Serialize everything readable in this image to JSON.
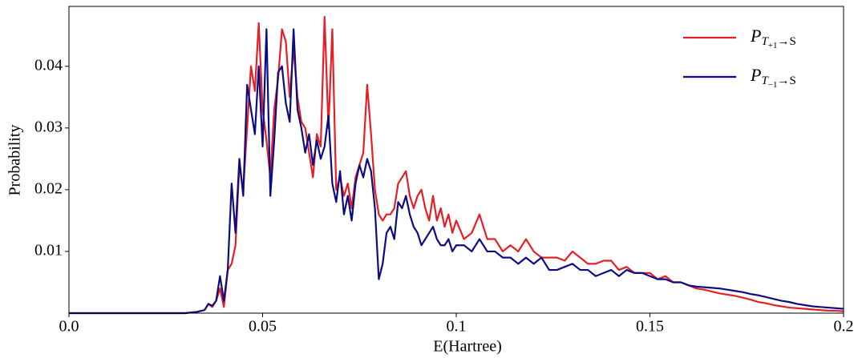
{
  "chart_data": {
    "type": "line",
    "xlabel": "E(Hartree)",
    "ylabel": "Probability",
    "x": [
      0,
      0.01,
      0.02,
      0.03,
      0.033,
      0.035,
      0.036,
      0.037,
      0.038,
      0.039,
      0.04,
      0.041,
      0.042,
      0.043,
      0.044,
      0.045,
      0.046,
      0.047,
      0.048,
      0.049,
      0.05,
      0.051,
      0.052,
      0.053,
      0.054,
      0.055,
      0.056,
      0.057,
      0.058,
      0.059,
      0.06,
      0.061,
      0.062,
      0.063,
      0.064,
      0.065,
      0.066,
      0.067,
      0.068,
      0.069,
      0.07,
      0.071,
      0.072,
      0.073,
      0.074,
      0.075,
      0.076,
      0.077,
      0.078,
      0.079,
      0.08,
      0.081,
      0.082,
      0.083,
      0.084,
      0.085,
      0.086,
      0.087,
      0.088,
      0.089,
      0.09,
      0.091,
      0.092,
      0.093,
      0.094,
      0.095,
      0.096,
      0.097,
      0.098,
      0.099,
      0.1,
      0.102,
      0.104,
      0.106,
      0.108,
      0.11,
      0.112,
      0.114,
      0.116,
      0.118,
      0.12,
      0.122,
      0.124,
      0.126,
      0.128,
      0.13,
      0.132,
      0.134,
      0.136,
      0.138,
      0.14,
      0.142,
      0.144,
      0.146,
      0.148,
      0.15,
      0.152,
      0.154,
      0.156,
      0.158,
      0.16,
      0.162,
      0.164,
      0.166,
      0.168,
      0.17,
      0.172,
      0.174,
      0.176,
      0.178,
      0.18,
      0.182,
      0.184,
      0.186,
      0.188,
      0.19,
      0.192,
      0.194,
      0.196,
      0.198,
      0.2
    ],
    "series": [
      {
        "name": "P_{T_{+1}→S}",
        "color": "#e41f26",
        "values": [
          0,
          0,
          0,
          0,
          0.0002,
          0.0005,
          0.0015,
          0.001,
          0.002,
          0.004,
          0.001,
          0.007,
          0.008,
          0.011,
          0.024,
          0.02,
          0.03,
          0.04,
          0.036,
          0.047,
          0.033,
          0.028,
          0.022,
          0.033,
          0.038,
          0.046,
          0.044,
          0.035,
          0.043,
          0.035,
          0.031,
          0.03,
          0.026,
          0.022,
          0.029,
          0.027,
          0.048,
          0.03,
          0.046,
          0.02,
          0.022,
          0.019,
          0.021,
          0.017,
          0.022,
          0.024,
          0.026,
          0.037,
          0.029,
          0.02,
          0.016,
          0.015,
          0.016,
          0.016,
          0.017,
          0.021,
          0.022,
          0.023,
          0.019,
          0.017,
          0.019,
          0.02,
          0.017,
          0.015,
          0.019,
          0.015,
          0.017,
          0.014,
          0.016,
          0.013,
          0.015,
          0.012,
          0.013,
          0.016,
          0.012,
          0.012,
          0.01,
          0.011,
          0.01,
          0.012,
          0.01,
          0.009,
          0.009,
          0.009,
          0.0085,
          0.01,
          0.009,
          0.008,
          0.008,
          0.0085,
          0.0085,
          0.007,
          0.0075,
          0.0065,
          0.0065,
          0.0065,
          0.0055,
          0.006,
          0.005,
          0.005,
          0.0045,
          0.004,
          0.0038,
          0.0035,
          0.0032,
          0.003,
          0.0028,
          0.0025,
          0.0022,
          0.0018,
          0.0016,
          0.0013,
          0.0011,
          0.0009,
          0.0008,
          0.0007,
          0.0006,
          0.0005,
          0.0004,
          0.0004,
          0.0003
        ]
      },
      {
        "name": "P_{T_{−1}→S}",
        "color": "#0c0c82",
        "values": [
          0,
          0,
          0,
          0,
          0.0002,
          0.0005,
          0.0015,
          0.0012,
          0.002,
          0.006,
          0.002,
          0.007,
          0.021,
          0.013,
          0.025,
          0.019,
          0.037,
          0.033,
          0.029,
          0.04,
          0.027,
          0.046,
          0.019,
          0.028,
          0.039,
          0.04,
          0.034,
          0.031,
          0.046,
          0.033,
          0.03,
          0.026,
          0.029,
          0.024,
          0.028,
          0.025,
          0.027,
          0.032,
          0.021,
          0.018,
          0.023,
          0.016,
          0.019,
          0.015,
          0.021,
          0.024,
          0.022,
          0.025,
          0.023,
          0.017,
          0.0055,
          0.008,
          0.013,
          0.014,
          0.012,
          0.018,
          0.017,
          0.019,
          0.016,
          0.014,
          0.013,
          0.011,
          0.012,
          0.013,
          0.014,
          0.012,
          0.011,
          0.011,
          0.012,
          0.01,
          0.011,
          0.011,
          0.01,
          0.012,
          0.01,
          0.01,
          0.009,
          0.009,
          0.008,
          0.009,
          0.008,
          0.009,
          0.007,
          0.007,
          0.0075,
          0.008,
          0.007,
          0.007,
          0.006,
          0.0065,
          0.007,
          0.006,
          0.007,
          0.0065,
          0.0065,
          0.006,
          0.0055,
          0.0055,
          0.005,
          0.005,
          0.0045,
          0.0043,
          0.0042,
          0.0041,
          0.004,
          0.0038,
          0.0036,
          0.0034,
          0.0031,
          0.0029,
          0.0026,
          0.0023,
          0.002,
          0.0018,
          0.0015,
          0.0013,
          0.0011,
          0.001,
          0.0009,
          0.0008,
          0.0007
        ]
      }
    ],
    "xlim": [
      0,
      0.2
    ],
    "ylim": [
      0,
      0.0497
    ],
    "xticks": [
      {
        "value": 0,
        "label": "0.0"
      },
      0.05,
      0.1,
      0.15,
      0.2
    ],
    "yticks": [
      0.01,
      0.02,
      0.03,
      0.04
    ],
    "legend": "upper right"
  }
}
